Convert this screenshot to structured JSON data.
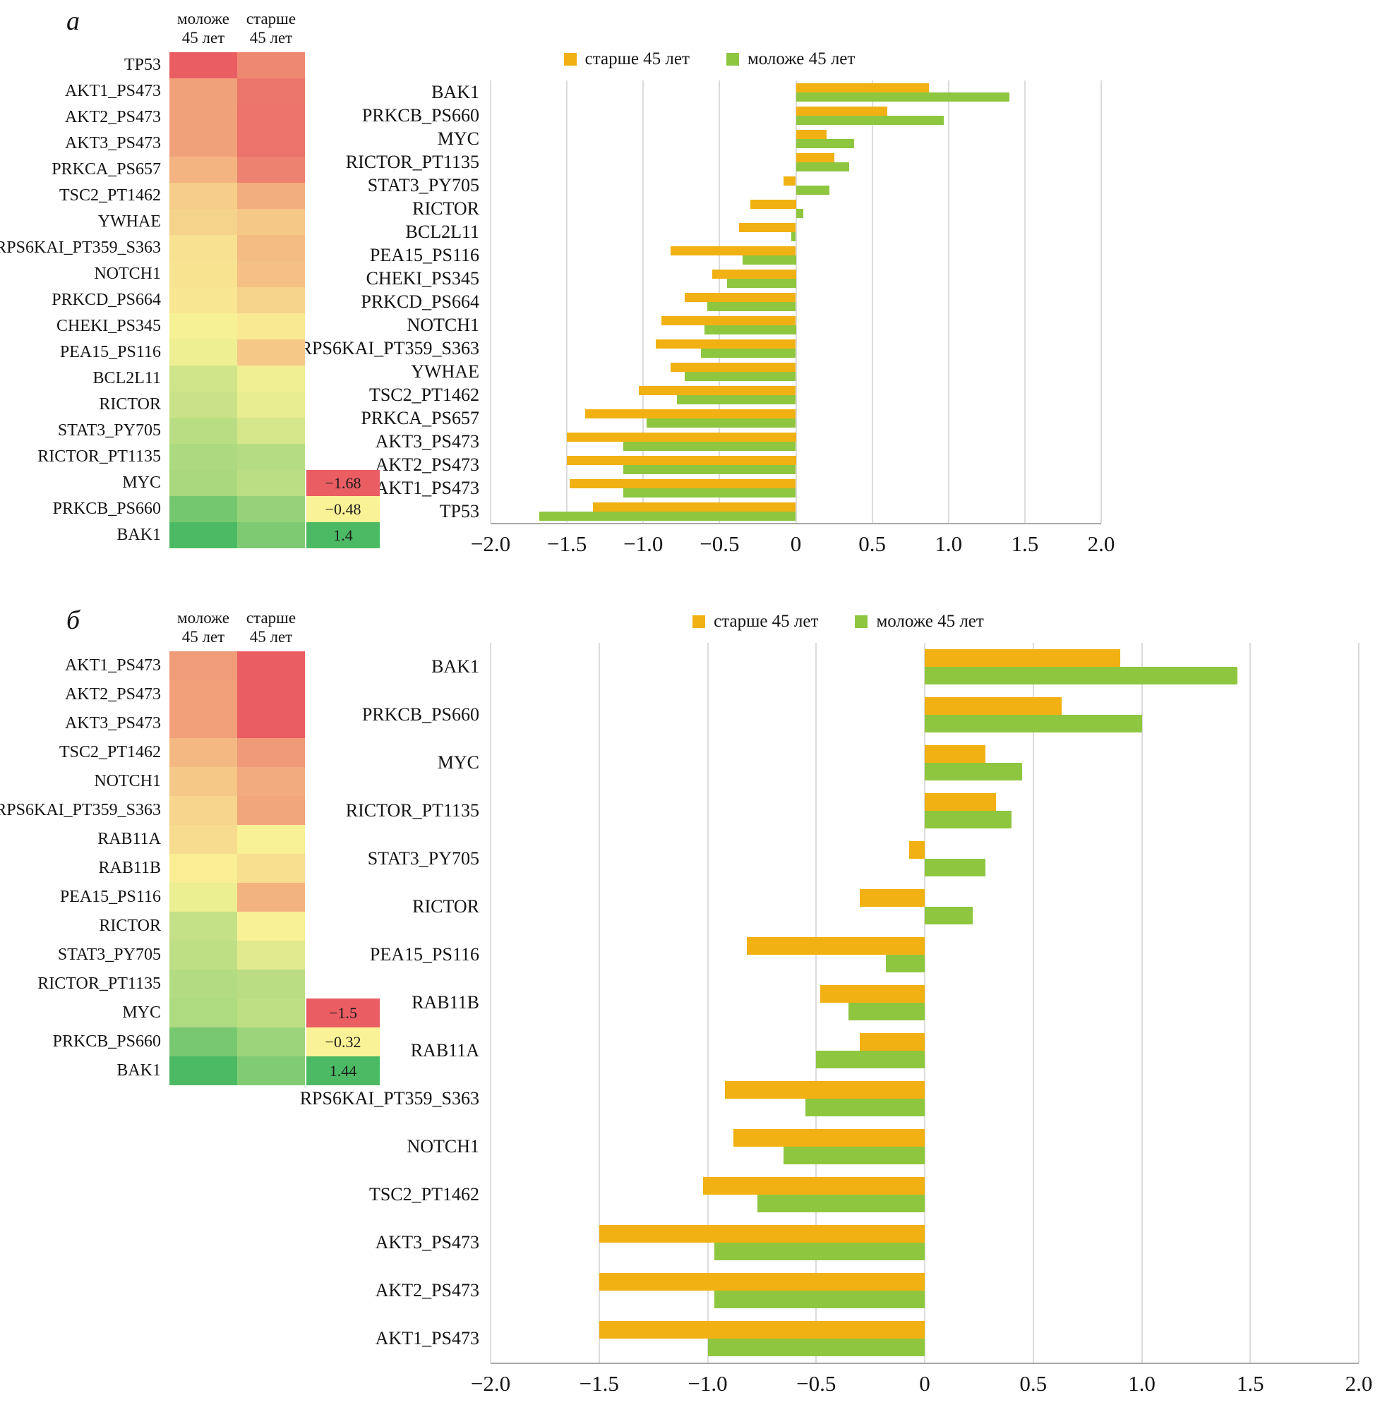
{
  "panel_labels": [
    "а",
    "б"
  ],
  "heatmaps": [
    {
      "col_headers": [
        "моложе\n45 лет",
        "старше\n45 лет"
      ],
      "scale": {
        "labels": [
          "−1.68",
          "−0.48",
          "1.4"
        ],
        "values": [
          -1.68,
          -0.48,
          1.4
        ],
        "colors": [
          "#e95d63",
          "#faf296",
          "#4cba64"
        ]
      }
    },
    {
      "col_headers": [
        "моложе\n45 лет",
        "старше\n45 лет"
      ],
      "scale": {
        "labels": [
          "−1.5",
          "−0.32",
          "1.44"
        ],
        "values": [
          -1.5,
          -0.32,
          1.44
        ],
        "colors": [
          "#e95d63",
          "#faf296",
          "#4cba64"
        ]
      }
    }
  ],
  "chart_data": [
    {
      "type": "bar",
      "orientation": "horizontal",
      "title": "",
      "categories": [
        "BAK1",
        "PRKCB_PS660",
        "MYC",
        "RICTOR_PT1135",
        "STAT3_PY705",
        "RICTOR",
        "BCL2L11",
        "PEA15_PS116",
        "CHEKI_PS345",
        "PRKCD_PS664",
        "NOTCH1",
        "RPS6KAI_PT359_S363",
        "YWHAE",
        "TSC2_PT1462",
        "PRKCA_PS657",
        "AKT3_PS473",
        "AKT2_PS473",
        "AKT1_PS473",
        "TP53"
      ],
      "series": [
        {
          "name": "старше 45 лет",
          "color": "#f1b113",
          "values": [
            0.87,
            0.6,
            0.2,
            0.25,
            -0.08,
            -0.3,
            -0.37,
            -0.82,
            -0.55,
            -0.73,
            -0.88,
            -0.92,
            -0.82,
            -1.03,
            -1.38,
            -1.5,
            -1.5,
            -1.48,
            -1.33
          ]
        },
        {
          "name": "моложе 45 лет",
          "color": "#8ec63f",
          "values": [
            1.4,
            0.97,
            0.38,
            0.35,
            0.22,
            0.05,
            -0.03,
            -0.35,
            -0.45,
            -0.58,
            -0.6,
            -0.62,
            -0.73,
            -0.78,
            -0.98,
            -1.13,
            -1.13,
            -1.13,
            -1.68
          ]
        }
      ],
      "xlim": [
        -2,
        2
      ],
      "xtick_values": [
        -2,
        -1.5,
        -1,
        -0.5,
        0,
        0.5,
        1,
        1.5,
        2
      ],
      "xtick_labels": [
        "−2.0",
        "−1.5",
        "−1.0",
        "−0.5",
        "0",
        "0.5",
        "1.0",
        "1.5",
        "2.0"
      ],
      "grid": true,
      "legend_position": "top"
    },
    {
      "type": "bar",
      "orientation": "horizontal",
      "title": "",
      "categories": [
        "BAK1",
        "PRKCB_PS660",
        "MYC",
        "RICTOR_PT1135",
        "STAT3_PY705",
        "RICTOR",
        "PEA15_PS116",
        "RAB11B",
        "RAB11A",
        "RPS6KAI_PT359_S363",
        "NOTCH1",
        "TSC2_PT1462",
        "AKT3_PS473",
        "AKT2_PS473",
        "AKT1_PS473"
      ],
      "series": [
        {
          "name": "старше 45 лет",
          "color": "#f1b113",
          "values": [
            0.9,
            0.63,
            0.28,
            0.33,
            -0.07,
            -0.3,
            -0.82,
            -0.48,
            -0.3,
            -0.92,
            -0.88,
            -1.02,
            -1.5,
            -1.5,
            -1.5
          ]
        },
        {
          "name": "моложе 45 лет",
          "color": "#8ec63f",
          "values": [
            1.44,
            1.0,
            0.45,
            0.4,
            0.28,
            0.22,
            -0.18,
            -0.35,
            -0.5,
            -0.55,
            -0.65,
            -0.77,
            -0.97,
            -0.97,
            -1.0
          ]
        }
      ],
      "xlim": [
        -2,
        2
      ],
      "xtick_values": [
        -2,
        -1.5,
        -1,
        -0.5,
        0,
        0.5,
        1,
        1.5,
        2
      ],
      "xtick_labels": [
        "−2.0",
        "−1.5",
        "−1.0",
        "−0.5",
        "0",
        "0.5",
        "1.0",
        "1.5",
        "2.0"
      ],
      "grid": true,
      "legend_position": "top"
    }
  ]
}
